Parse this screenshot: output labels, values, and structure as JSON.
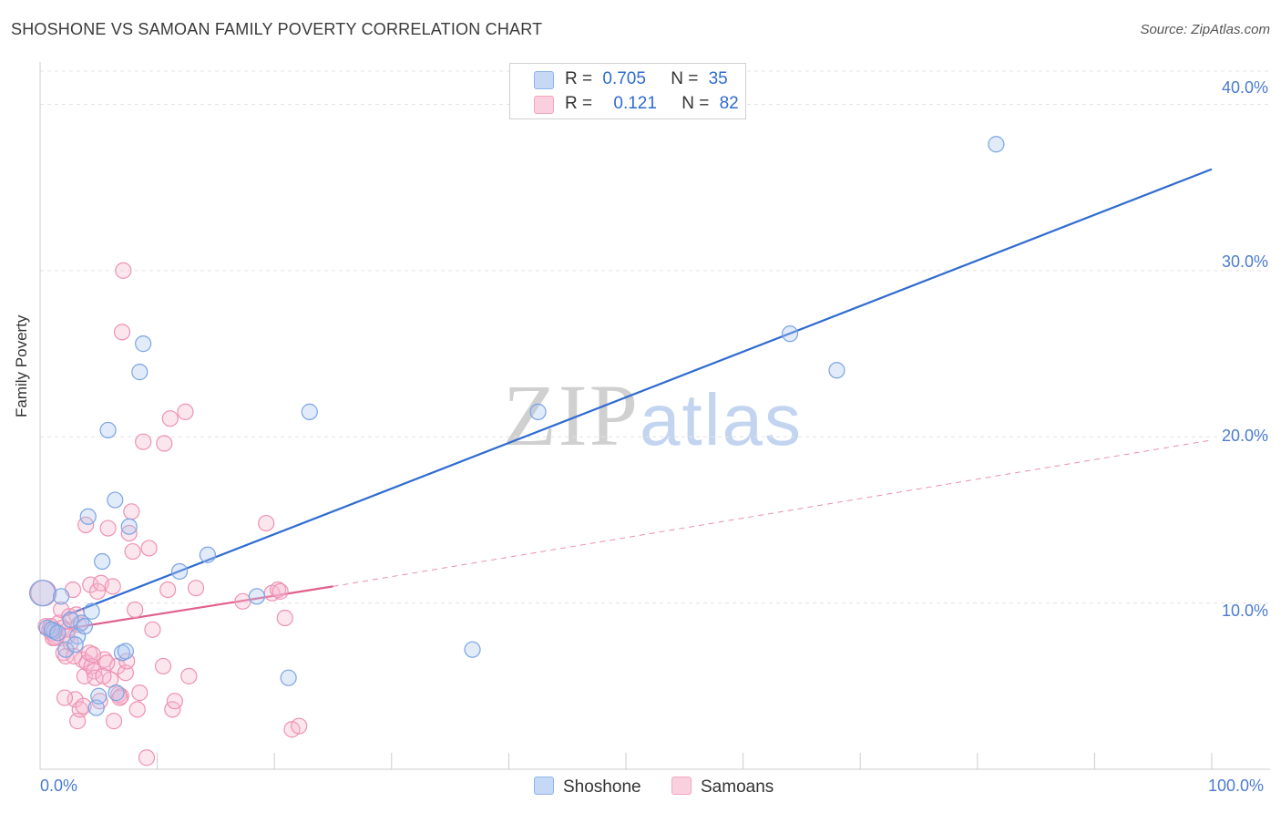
{
  "title": "SHOSHONE VS SAMOAN FAMILY POVERTY CORRELATION CHART",
  "source": "Source: ZipAtlas.com",
  "watermark": {
    "zip": "ZIP",
    "atlas": "atlas"
  },
  "colors": {
    "blue": "#8fb4ea",
    "blue_line": "#2f6bcf",
    "pink": "#f3a6c0",
    "pink_line": "#e0608e"
  },
  "legend": {
    "rows": [
      {
        "r_label": "R =",
        "r_value": "0.705",
        "n_label": "N =",
        "n_value": "35"
      },
      {
        "r_label": "R =",
        "r_value": "0.121",
        "n_label": "N =",
        "n_value": "82"
      }
    ]
  },
  "chart_data": {
    "type": "scatter",
    "title": "SHOSHONE VS SAMOAN FAMILY POVERTY CORRELATION CHART",
    "xlabel": "",
    "ylabel": "Family Poverty",
    "xlim": [
      0,
      100
    ],
    "ylim": [
      0,
      42
    ],
    "x_tick_labels": [
      "0.0%",
      "100.0%"
    ],
    "y_ticks": [
      10,
      20,
      30,
      40
    ],
    "y_tick_labels": [
      "10.0%",
      "20.0%",
      "30.0%",
      "40.0%"
    ],
    "grid": true,
    "legend_position": "top-center",
    "series": [
      {
        "name": "Shoshone",
        "color": "#8fb4ea",
        "trend": {
          "x": [
            2,
            100
          ],
          "y": [
            9.2,
            36.1
          ],
          "style": "solid"
        },
        "points": [
          {
            "x": 0.2,
            "y": 10.6
          },
          {
            "x": 1.8,
            "y": 10.4
          },
          {
            "x": 3.5,
            "y": 8.8
          },
          {
            "x": 3.2,
            "y": 8.0
          },
          {
            "x": 3.8,
            "y": 8.6
          },
          {
            "x": 2.2,
            "y": 7.2
          },
          {
            "x": 4.4,
            "y": 9.5
          },
          {
            "x": 4.1,
            "y": 15.2
          },
          {
            "x": 5.3,
            "y": 12.5
          },
          {
            "x": 5.8,
            "y": 20.4
          },
          {
            "x": 6.4,
            "y": 16.2
          },
          {
            "x": 7.6,
            "y": 14.6
          },
          {
            "x": 8.5,
            "y": 23.9
          },
          {
            "x": 8.8,
            "y": 25.6
          },
          {
            "x": 6.5,
            "y": 4.6
          },
          {
            "x": 4.8,
            "y": 3.7
          },
          {
            "x": 5.0,
            "y": 4.4
          },
          {
            "x": 7.0,
            "y": 7.0
          },
          {
            "x": 7.3,
            "y": 7.1
          },
          {
            "x": 11.9,
            "y": 11.9
          },
          {
            "x": 14.3,
            "y": 12.9
          },
          {
            "x": 18.5,
            "y": 10.4
          },
          {
            "x": 21.2,
            "y": 5.5
          },
          {
            "x": 23.0,
            "y": 21.5
          },
          {
            "x": 36.9,
            "y": 7.2
          },
          {
            "x": 42.5,
            "y": 21.5
          },
          {
            "x": 64.0,
            "y": 26.2
          },
          {
            "x": 68.0,
            "y": 24.0
          },
          {
            "x": 81.6,
            "y": 37.6
          },
          {
            "x": 1.2,
            "y": 8.3
          },
          {
            "x": 2.6,
            "y": 9.0
          },
          {
            "x": 0.6,
            "y": 8.5
          },
          {
            "x": 1.0,
            "y": 8.4
          },
          {
            "x": 3.0,
            "y": 7.5
          },
          {
            "x": 1.5,
            "y": 8.2
          }
        ]
      },
      {
        "name": "Samoans",
        "color": "#f3a6c0",
        "trend": {
          "x": [
            0,
            25
          ],
          "y": [
            8.2,
            11.0
          ],
          "style": "solid"
        },
        "trend_extension": {
          "x": [
            25,
            100
          ],
          "y": [
            11.0,
            19.8
          ],
          "style": "dashed"
        },
        "points": [
          {
            "x": 0.3,
            "y": 10.6
          },
          {
            "x": 0.5,
            "y": 8.6
          },
          {
            "x": 0.8,
            "y": 8.4
          },
          {
            "x": 1.0,
            "y": 8.2
          },
          {
            "x": 1.2,
            "y": 8.4
          },
          {
            "x": 1.4,
            "y": 8.0
          },
          {
            "x": 1.6,
            "y": 8.8
          },
          {
            "x": 1.8,
            "y": 9.6
          },
          {
            "x": 2.0,
            "y": 7.0
          },
          {
            "x": 2.2,
            "y": 6.8
          },
          {
            "x": 2.4,
            "y": 8.4
          },
          {
            "x": 2.6,
            "y": 7.6
          },
          {
            "x": 2.8,
            "y": 10.8
          },
          {
            "x": 3.0,
            "y": 4.2
          },
          {
            "x": 3.2,
            "y": 2.9
          },
          {
            "x": 3.4,
            "y": 3.6
          },
          {
            "x": 3.6,
            "y": 6.6
          },
          {
            "x": 3.8,
            "y": 5.6
          },
          {
            "x": 4.0,
            "y": 6.4
          },
          {
            "x": 4.2,
            "y": 7.0
          },
          {
            "x": 4.4,
            "y": 6.2
          },
          {
            "x": 4.6,
            "y": 5.9
          },
          {
            "x": 3.9,
            "y": 14.7
          },
          {
            "x": 4.3,
            "y": 11.1
          },
          {
            "x": 4.9,
            "y": 10.7
          },
          {
            "x": 5.2,
            "y": 11.2
          },
          {
            "x": 5.5,
            "y": 6.6
          },
          {
            "x": 5.8,
            "y": 14.5
          },
          {
            "x": 6.0,
            "y": 5.4
          },
          {
            "x": 6.3,
            "y": 2.9
          },
          {
            "x": 6.6,
            "y": 6.2
          },
          {
            "x": 6.9,
            "y": 4.4
          },
          {
            "x": 7.0,
            "y": 26.3
          },
          {
            "x": 7.1,
            "y": 30.0
          },
          {
            "x": 7.3,
            "y": 5.8
          },
          {
            "x": 7.6,
            "y": 14.2
          },
          {
            "x": 7.8,
            "y": 15.5
          },
          {
            "x": 7.9,
            "y": 13.1
          },
          {
            "x": 8.1,
            "y": 9.6
          },
          {
            "x": 8.3,
            "y": 3.6
          },
          {
            "x": 8.5,
            "y": 4.6
          },
          {
            "x": 8.8,
            "y": 19.7
          },
          {
            "x": 9.1,
            "y": 0.7
          },
          {
            "x": 9.3,
            "y": 13.3
          },
          {
            "x": 9.6,
            "y": 8.4
          },
          {
            "x": 10.5,
            "y": 6.2
          },
          {
            "x": 10.6,
            "y": 19.6
          },
          {
            "x": 10.9,
            "y": 10.8
          },
          {
            "x": 11.1,
            "y": 21.1
          },
          {
            "x": 11.3,
            "y": 3.6
          },
          {
            "x": 11.5,
            "y": 4.1
          },
          {
            "x": 12.4,
            "y": 21.5
          },
          {
            "x": 12.7,
            "y": 5.6
          },
          {
            "x": 13.3,
            "y": 10.9
          },
          {
            "x": 17.3,
            "y": 10.1
          },
          {
            "x": 19.3,
            "y": 14.8
          },
          {
            "x": 19.8,
            "y": 10.6
          },
          {
            "x": 20.3,
            "y": 10.8
          },
          {
            "x": 20.5,
            "y": 10.7
          },
          {
            "x": 20.9,
            "y": 9.1
          },
          {
            "x": 21.5,
            "y": 2.4
          },
          {
            "x": 22.1,
            "y": 2.6
          },
          {
            "x": 2.5,
            "y": 9.2
          },
          {
            "x": 1.1,
            "y": 7.9
          },
          {
            "x": 3.3,
            "y": 8.7
          },
          {
            "x": 2.9,
            "y": 6.8
          },
          {
            "x": 5.1,
            "y": 4.1
          },
          {
            "x": 4.7,
            "y": 5.5
          },
          {
            "x": 6.2,
            "y": 11.0
          },
          {
            "x": 6.7,
            "y": 4.5
          },
          {
            "x": 2.1,
            "y": 4.3
          },
          {
            "x": 3.7,
            "y": 3.8
          },
          {
            "x": 5.7,
            "y": 6.4
          },
          {
            "x": 1.9,
            "y": 8.5
          },
          {
            "x": 0.9,
            "y": 8.6
          },
          {
            "x": 1.3,
            "y": 7.9
          },
          {
            "x": 4.5,
            "y": 6.9
          },
          {
            "x": 3.1,
            "y": 9.3
          },
          {
            "x": 6.8,
            "y": 4.3
          },
          {
            "x": 5.4,
            "y": 5.6
          },
          {
            "x": 2.3,
            "y": 8.0
          },
          {
            "x": 7.4,
            "y": 6.5
          }
        ]
      }
    ]
  }
}
